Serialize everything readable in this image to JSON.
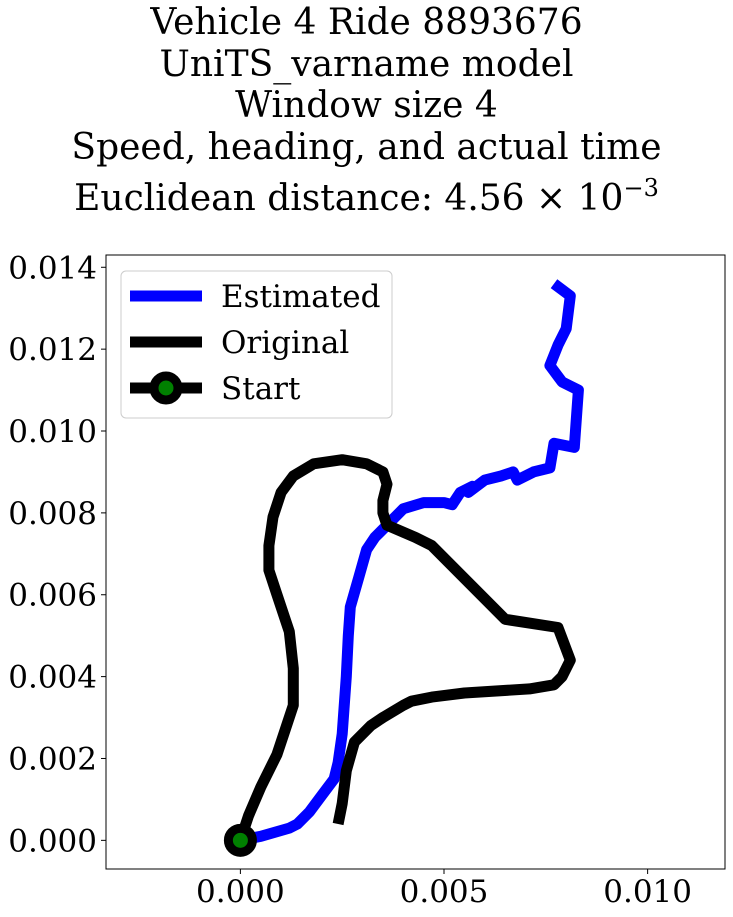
{
  "chart_data": {
    "type": "line",
    "title_lines": [
      "Vehicle 4 Ride 8893676",
      "UniTS_varname model",
      "Window size 4",
      "Speed, heading, and actual time",
      "Euclidean distance: 4.56 × 10"
    ],
    "title_exponent": "−3",
    "xlabel": "",
    "ylabel": "",
    "xlim": [
      -0.0033,
      0.0119
    ],
    "ylim": [
      -0.0007,
      0.0143
    ],
    "x_ticks": [
      0.0,
      0.005,
      0.01
    ],
    "x_tick_labels": [
      "0.000",
      "0.005",
      "0.010"
    ],
    "y_ticks": [
      0.0,
      0.002,
      0.004,
      0.006,
      0.008,
      0.01,
      0.012,
      0.014
    ],
    "y_tick_labels": [
      "0.000",
      "0.002",
      "0.004",
      "0.006",
      "0.008",
      "0.010",
      "0.012",
      "0.014"
    ],
    "grid": false,
    "legend_position": "upper-left",
    "series": [
      {
        "name": "Estimated",
        "color": "#0000ff",
        "points": [
          [
            0.0,
            0.0
          ],
          [
            0.0005,
            0.0001
          ],
          [
            0.0012,
            0.0003
          ],
          [
            0.0014,
            0.0004
          ],
          [
            0.0017,
            0.0007
          ],
          [
            0.002,
            0.0011
          ],
          [
            0.0023,
            0.0015
          ],
          [
            0.0024,
            0.0019
          ],
          [
            0.0025,
            0.0026
          ],
          [
            0.0026,
            0.004
          ],
          [
            0.00265,
            0.005
          ],
          [
            0.0027,
            0.0057
          ],
          [
            0.0029,
            0.0064
          ],
          [
            0.0031,
            0.0071
          ],
          [
            0.0033,
            0.0074
          ],
          [
            0.0036,
            0.0077
          ],
          [
            0.004,
            0.0081
          ],
          [
            0.0045,
            0.00825
          ],
          [
            0.005,
            0.00825
          ],
          [
            0.0052,
            0.0082
          ],
          [
            0.0054,
            0.0085
          ],
          [
            0.0057,
            0.00865
          ],
          [
            0.0056,
            0.0085
          ],
          [
            0.006,
            0.0088
          ],
          [
            0.0064,
            0.0089
          ],
          [
            0.0067,
            0.009
          ],
          [
            0.0068,
            0.0088
          ],
          [
            0.0072,
            0.009
          ],
          [
            0.0076,
            0.0091
          ],
          [
            0.0077,
            0.0097
          ],
          [
            0.0082,
            0.0096
          ],
          [
            0.0083,
            0.011
          ],
          [
            0.0079,
            0.0112
          ],
          [
            0.0076,
            0.0116
          ],
          [
            0.0078,
            0.0121
          ],
          [
            0.008,
            0.0125
          ],
          [
            0.0081,
            0.0133
          ],
          [
            0.0077,
            0.0136
          ]
        ]
      },
      {
        "name": "Original",
        "color": "#000000",
        "points": [
          [
            0.0,
            0.0
          ],
          [
            0.0002,
            0.0006
          ],
          [
            0.0005,
            0.0013
          ],
          [
            0.0009,
            0.0021
          ],
          [
            0.0011,
            0.0027
          ],
          [
            0.0013,
            0.0033
          ],
          [
            0.0013,
            0.0042
          ],
          [
            0.0012,
            0.0051
          ],
          [
            0.0009,
            0.006
          ],
          [
            0.0007,
            0.0066
          ],
          [
            0.0007,
            0.0072
          ],
          [
            0.0008,
            0.0079
          ],
          [
            0.001,
            0.0085
          ],
          [
            0.0013,
            0.0089
          ],
          [
            0.0018,
            0.0092
          ],
          [
            0.0025,
            0.0093
          ],
          [
            0.0031,
            0.0092
          ],
          [
            0.0035,
            0.009
          ],
          [
            0.0036,
            0.0087
          ],
          [
            0.0035,
            0.0083
          ],
          [
            0.0035,
            0.008
          ],
          [
            0.0036,
            0.0077
          ],
          [
            0.0043,
            0.0074
          ],
          [
            0.0047,
            0.0072
          ],
          [
            0.0051,
            0.0068
          ],
          [
            0.0055,
            0.0064
          ],
          [
            0.006,
            0.0059
          ],
          [
            0.0065,
            0.0054
          ],
          [
            0.0078,
            0.0052
          ],
          [
            0.0081,
            0.0044
          ],
          [
            0.0079,
            0.004
          ],
          [
            0.0077,
            0.0038
          ],
          [
            0.0071,
            0.0037
          ],
          [
            0.0055,
            0.0036
          ],
          [
            0.0047,
            0.0035
          ],
          [
            0.0042,
            0.0034
          ],
          [
            0.004,
            0.0033
          ],
          [
            0.0035,
            0.003
          ],
          [
            0.0032,
            0.0028
          ],
          [
            0.0028,
            0.0024
          ],
          [
            0.0026,
            0.0017
          ],
          [
            0.0025,
            0.0009
          ],
          [
            0.0024,
            0.0004
          ]
        ]
      }
    ],
    "start_point": {
      "name": "Start",
      "x": 0.0,
      "y": 0.0,
      "marker_color": "#008000",
      "edge_color": "#000000"
    },
    "legend": [
      {
        "label": "Estimated",
        "color": "#0000ff",
        "style": "line"
      },
      {
        "label": "Original",
        "color": "#000000",
        "style": "line"
      },
      {
        "label": "Start",
        "color": "#000000",
        "style": "line-marker",
        "marker_color": "#008000"
      }
    ]
  }
}
